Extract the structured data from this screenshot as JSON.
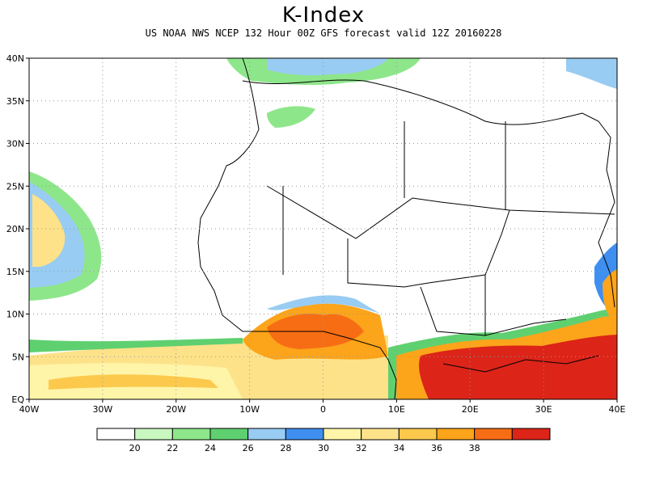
{
  "title": "K-Index",
  "subtitle": "US NOAA NWS NCEP 132 Hour 00Z GFS forecast valid 12Z 20160228",
  "map": {
    "lon_range": [
      -40,
      40
    ],
    "lat_range": [
      0,
      40
    ],
    "lat_labels": [
      {
        "lat": 40,
        "text": "40N"
      },
      {
        "lat": 35,
        "text": "35N"
      },
      {
        "lat": 30,
        "text": "30N"
      },
      {
        "lat": 25,
        "text": "25N"
      },
      {
        "lat": 20,
        "text": "20N"
      },
      {
        "lat": 15,
        "text": "15N"
      },
      {
        "lat": 10,
        "text": "10N"
      },
      {
        "lat": 5,
        "text": "5N"
      },
      {
        "lat": 0,
        "text": "EQ"
      }
    ],
    "lon_labels": [
      {
        "lon": -40,
        "text": "40W"
      },
      {
        "lon": -30,
        "text": "30W"
      },
      {
        "lon": -20,
        "text": "20W"
      },
      {
        "lon": -10,
        "text": "10W"
      },
      {
        "lon": 0,
        "text": "0"
      },
      {
        "lon": 10,
        "text": "10E"
      },
      {
        "lon": 20,
        "text": "20E"
      },
      {
        "lon": 30,
        "text": "30E"
      },
      {
        "lon": 40,
        "text": "40E"
      }
    ],
    "grid": true
  },
  "legend": {
    "colors": [
      "#ffffff",
      "#c8f7c0",
      "#8ee68a",
      "#5fd070",
      "#98ccf2",
      "#3f8ff0",
      "#fff5a8",
      "#fde28a",
      "#fcc94d",
      "#fca41a",
      "#f76d14",
      "#dc2418"
    ],
    "labels": [
      "20",
      "22",
      "24",
      "26",
      "28",
      "30",
      "32",
      "34",
      "36",
      "38"
    ]
  }
}
